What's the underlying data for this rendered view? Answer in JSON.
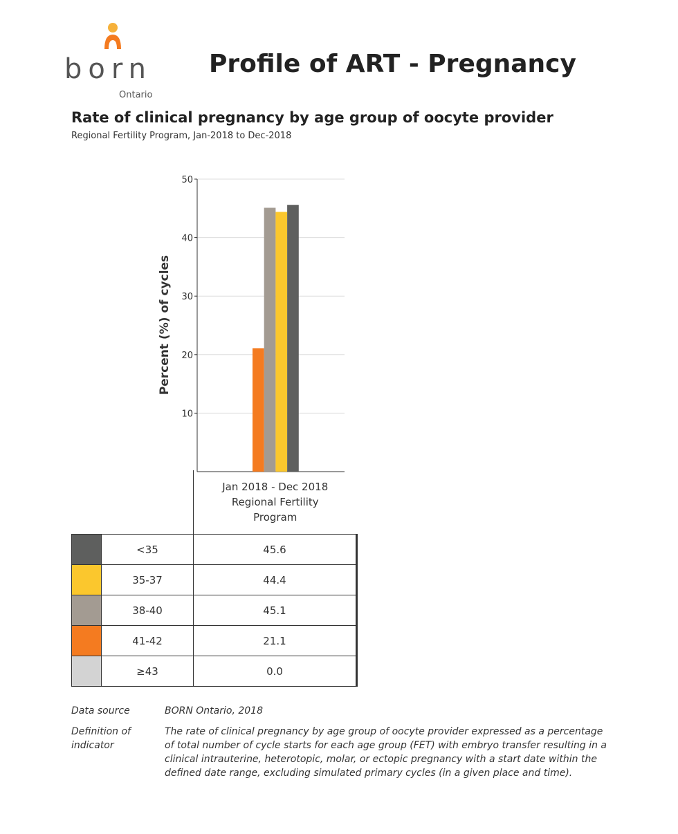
{
  "logo": {
    "name": "born",
    "sub": "Ontario"
  },
  "header": {
    "title": "Profile of ART - Pregnancy"
  },
  "chart_data": {
    "type": "bar",
    "title": "Rate of clinical pregnancy by age group of oocyte provider",
    "subtitle": "Regional Fertility Program, Jan-2018 to Dec-2018",
    "ylabel": "Percent (%) of cycles",
    "ylim": [
      0,
      50
    ],
    "yticks": [
      10,
      20,
      30,
      40,
      50
    ],
    "grid": true,
    "categories": [
      "Jan 2018 - Dec 2018 Regional Fertility Program"
    ],
    "category_lines": [
      "Jan 2018 - Dec 2018",
      "Regional Fertility",
      "Program"
    ],
    "series": [
      {
        "name": "≥43",
        "values": [
          0.0
        ],
        "color": "#d3d3d3"
      },
      {
        "name": "41-42",
        "values": [
          21.1
        ],
        "color": "#f47b20"
      },
      {
        "name": "38-40",
        "values": [
          45.1
        ],
        "color": "#a39b92"
      },
      {
        "name": "35-37",
        "values": [
          44.4
        ],
        "color": "#fbc72d"
      },
      {
        "name": "<35",
        "values": [
          45.6
        ],
        "color": "#5e5f5e"
      }
    ]
  },
  "table_rows": [
    {
      "label": "<35",
      "value": "45.6",
      "color": "#5e5f5e"
    },
    {
      "label": "35-37",
      "value": "44.4",
      "color": "#fbc72d"
    },
    {
      "label": "38-40",
      "value": "45.1",
      "color": "#a39b92"
    },
    {
      "label": "41-42",
      "value": "21.1",
      "color": "#f47b20"
    },
    {
      "label": "≥43",
      "value": "0.0",
      "color": "#d3d3d3"
    }
  ],
  "footer": {
    "source_label": "Data source",
    "source": "BORN Ontario, 2018",
    "definition_label": "Definition of indicator",
    "definition": "The rate of clinical pregnancy by age group of oocyte provider expressed as a percentage of total number of cycle starts for each age group (FET) with embryo transfer resulting in a clinical intrauterine, heterotopic, molar, or ectopic pregnancy with a start date within the defined date range, excluding simulated primary cycles (in a given place and time)."
  }
}
